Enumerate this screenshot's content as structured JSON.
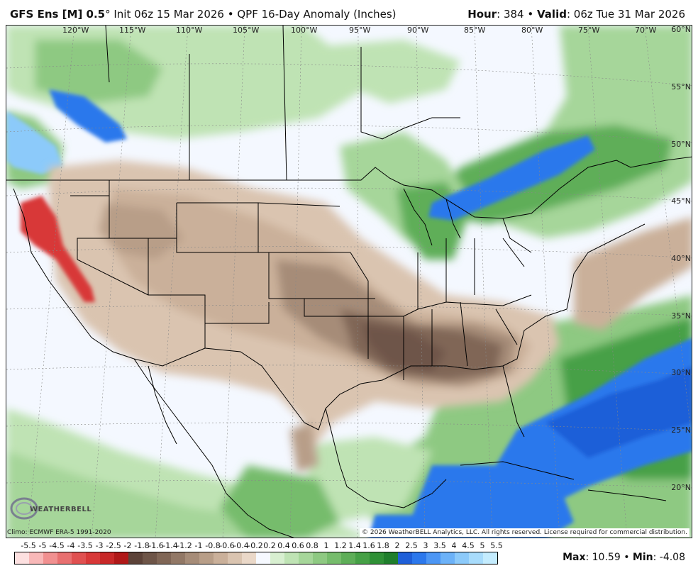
{
  "header": {
    "model": "GFS Ens [M] 0.5",
    "degree": "°",
    "init": "Init 06z 15 Mar 2026",
    "separator": "•",
    "product": "QPF 16-Day Anomaly (Inches)",
    "hour_label": "Hour",
    "hour_value": ": 384",
    "valid_label": "Valid",
    "valid_value": ": 06z Tue 31 Mar 2026"
  },
  "map": {
    "lon_labels": [
      "120°W",
      "115°W",
      "110°W",
      "105°W",
      "100°W",
      "95°W",
      "90°W",
      "85°W",
      "80°W",
      "75°W",
      "70°W"
    ],
    "lat_labels": [
      "60°N",
      "55°N",
      "50°N",
      "45°N",
      "40°N",
      "35°N",
      "30°N",
      "25°N",
      "20°N"
    ]
  },
  "footer": {
    "climo": "Climo: ECMWF ERA-5 1991-2020",
    "copyright": "© 2026 WeatherBELL Analytics, LLC. All rights reserved. License required for commercial distribution.",
    "logo": "WEATHERBELL"
  },
  "legend": {
    "labels": [
      "-5.5",
      "-5",
      "-4.5",
      "-4",
      "-3.5",
      "-3",
      "-2.5",
      "-2",
      "-1.8",
      "-1.6",
      "-1.4",
      "-1.2",
      "-1",
      "-0.8",
      "-0.6",
      "-0.4",
      "-0.2",
      "0.2",
      "0.4",
      "0.6",
      "0.8",
      "1",
      "1.2",
      "1.4",
      "1.6",
      "1.8",
      "2",
      "2.5",
      "3",
      "3.5",
      "4",
      "4.5",
      "5",
      "5.5"
    ],
    "colors": [
      "#fde0e0",
      "#f8b8b8",
      "#f19090",
      "#e87070",
      "#e05050",
      "#d83838",
      "#c82828",
      "#b01818",
      "#5c4238",
      "#6e5548",
      "#806656",
      "#927866",
      "#a68c78",
      "#b89e88",
      "#cab09a",
      "#dac4b0",
      "#ead8c8",
      "#f6f9ff",
      "#d8efd0",
      "#bfe3b4",
      "#a6d69a",
      "#8ec982",
      "#76bc6c",
      "#5eae58",
      "#46a046",
      "#2f9036",
      "#1f7e2c",
      "#1f5fd8",
      "#2c78ec",
      "#4c96f4",
      "#6cb2f8",
      "#8ccafa",
      "#a8dcfc",
      "#c4ecfe"
    ]
  },
  "stats": {
    "max_label": "Max",
    "max_value": ": 10.59",
    "min_label": "Min",
    "min_value": ": -4.08",
    "separator": "•"
  }
}
